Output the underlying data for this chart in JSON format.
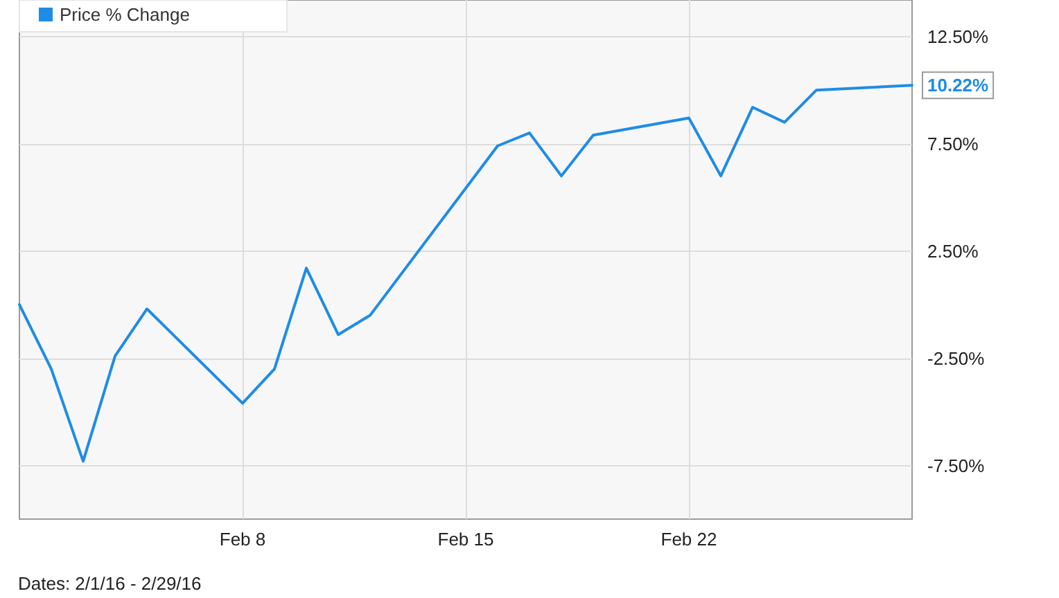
{
  "chart_data": {
    "type": "line",
    "x": [
      "--02-01",
      "--02-02",
      "--02-03",
      "--02-04",
      "--02-05",
      "--02-08",
      "--02-09",
      "--02-10",
      "--02-11",
      "--02-12",
      "--02-16",
      "--02-17",
      "--02-18",
      "--02-19",
      "--02-22",
      "--02-23",
      "--02-24",
      "--02-25",
      "--02-26",
      "--02-29"
    ],
    "series": [
      {
        "name": "Price % Change",
        "color": "#1e8ce6",
        "values": [
          0,
          -3.0,
          -7.3,
          -2.4,
          -0.2,
          -4.6,
          -3.0,
          1.7,
          -1.4,
          -0.5,
          7.4,
          8.0,
          6.0,
          7.9,
          8.7,
          6.0,
          9.2,
          8.5,
          10.0,
          10.22
        ],
        "value_labels": [
          null,
          null,
          null,
          null,
          null,
          null,
          null,
          null,
          null,
          null,
          null,
          null,
          null,
          null,
          null,
          null,
          null,
          null,
          null,
          "10.22%"
        ]
      }
    ],
    "xlim": [
      "--02-01",
      "--02-29"
    ],
    "xticks": [
      {
        "value": "--02-08",
        "label": "Feb 8"
      },
      {
        "value": "--02-15",
        "label": "Feb 15"
      },
      {
        "value": "--02-22",
        "label": "Feb 22"
      }
    ],
    "ylim": [
      -10,
      14.2
    ],
    "yticks": [
      {
        "value": -7.5,
        "label": "-7.50%"
      },
      {
        "value": -2.5,
        "label": "-2.50%"
      },
      {
        "value": 2.5,
        "label": "2.50%"
      },
      {
        "value": 7.5,
        "label": "7.50%"
      },
      {
        "value": 12.5,
        "label": "12.50%"
      }
    ],
    "grid": true,
    "legend": "top left",
    "marker": "none",
    "line_style": "solid",
    "annotations": [
      "Dates: 2/1/16 - 2/29/16"
    ]
  }
}
